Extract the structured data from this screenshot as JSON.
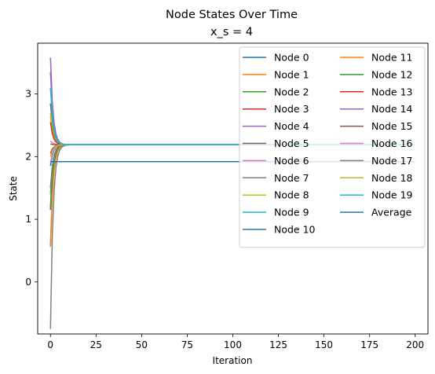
{
  "chart_data": {
    "type": "line",
    "title": "Node States Over Time",
    "subtitle": "x_s = 4",
    "xlabel": "Iteration",
    "ylabel": "State",
    "xlim": [
      -7,
      207
    ],
    "ylim": [
      -0.83,
      3.81
    ],
    "xticks": [
      0,
      25,
      50,
      75,
      100,
      125,
      150,
      175,
      200
    ],
    "yticks": [
      0,
      1,
      2,
      3
    ],
    "grid": false,
    "legend": {
      "placement": "top-right",
      "columns": 2
    },
    "consensus_value": 2.19,
    "series": [
      {
        "name": "Node 0",
        "color": "#1f77b4",
        "initial": 1.15,
        "final": 2.19
      },
      {
        "name": "Node 1",
        "color": "#ff7f0e",
        "initial": 2.65,
        "final": 2.19
      },
      {
        "name": "Node 2",
        "color": "#2ca02c",
        "initial": 1.5,
        "final": 2.19
      },
      {
        "name": "Node 3",
        "color": "#d62728",
        "initial": 2.05,
        "final": 2.19
      },
      {
        "name": "Node 4",
        "color": "#9467bd",
        "initial": 3.58,
        "final": 2.19
      },
      {
        "name": "Node 5",
        "color": "#8c564b",
        "initial": 2.85,
        "final": 2.19
      },
      {
        "name": "Node 6",
        "color": "#e377c2",
        "initial": 2.25,
        "final": 2.19
      },
      {
        "name": "Node 7",
        "color": "#7f7f7f",
        "initial": -0.75,
        "final": 2.19
      },
      {
        "name": "Node 8",
        "color": "#bcbd22",
        "initial": 2.7,
        "final": 2.19
      },
      {
        "name": "Node 9",
        "color": "#17becf",
        "initial": 0.58,
        "final": 2.19
      },
      {
        "name": "Node 10",
        "color": "#1f77b4",
        "initial": 1.85,
        "final": 2.19
      },
      {
        "name": "Node 11",
        "color": "#ff7f0e",
        "initial": 0.56,
        "final": 2.19
      },
      {
        "name": "Node 12",
        "color": "#2ca02c",
        "initial": 1.2,
        "final": 2.19
      },
      {
        "name": "Node 13",
        "color": "#d62728",
        "initial": 2.55,
        "final": 2.19
      },
      {
        "name": "Node 14",
        "color": "#9467bd",
        "initial": 3.35,
        "final": 2.19
      },
      {
        "name": "Node 15",
        "color": "#8c564b",
        "initial": 2.2,
        "final": 2.19
      },
      {
        "name": "Node 16",
        "color": "#e377c2",
        "initial": 1.9,
        "final": 2.19
      },
      {
        "name": "Node 17",
        "color": "#7f7f7f",
        "initial": 1.4,
        "final": 2.19
      },
      {
        "name": "Node 18",
        "color": "#bcbd22",
        "initial": 2.0,
        "final": 2.19
      },
      {
        "name": "Node 19",
        "color": "#17becf",
        "initial": 3.1,
        "final": 2.19
      },
      {
        "name": "Average",
        "color": "#1f77b4",
        "constant": 1.92
      }
    ]
  }
}
